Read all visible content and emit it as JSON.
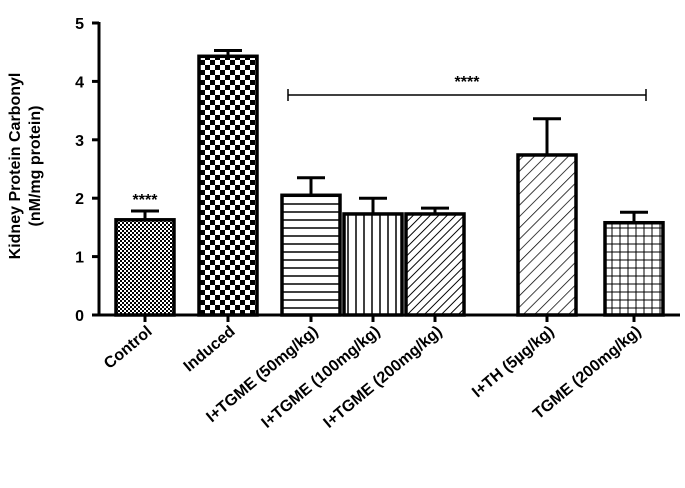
{
  "chart_data": {
    "type": "bar",
    "ylabel": "Kidney Protein Carbonyl",
    "ylabel_unit": "(nM/mg protein)",
    "ylim": [
      0,
      5
    ],
    "yticks": [
      "0",
      "1",
      "2",
      "3",
      "4",
      "5"
    ],
    "categories": [
      "Control",
      "Induced",
      "I+TGME (50mg/kg)",
      "I+TGME (100mg/kg)",
      "I+TGME (200mg/kg)",
      "I+TH (5µg/kg)",
      "TGME (200mg/kg)"
    ],
    "values": [
      1.63,
      4.43,
      2.05,
      1.73,
      1.73,
      2.74,
      1.58
    ],
    "errors": [
      0.15,
      0.1,
      0.3,
      0.27,
      0.1,
      0.62,
      0.18
    ],
    "patterns": [
      "dense-check",
      "checker",
      "horizontal",
      "vertical",
      "diagonal-dense",
      "diagonal",
      "grid"
    ],
    "grid": false,
    "legend": "none",
    "annotations": {
      "control_sig": "****",
      "bracket_sig": "****"
    }
  }
}
